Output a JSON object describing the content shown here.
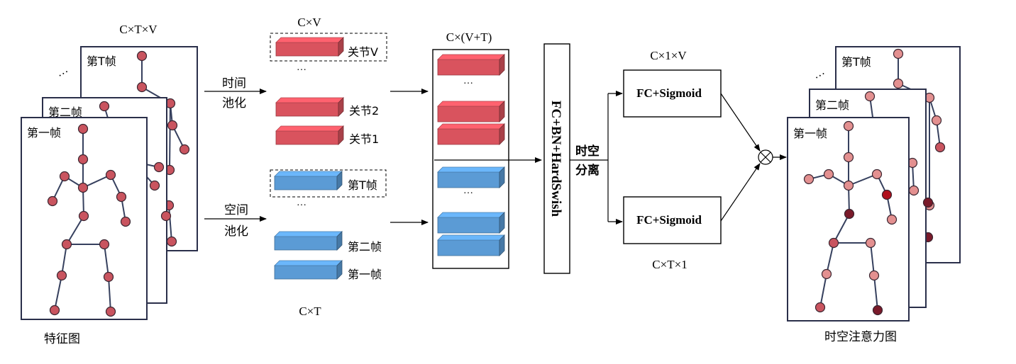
{
  "input": {
    "dims": "C×T×V",
    "frame_first": "第一帧",
    "frame_second": "第二帧",
    "frame_last": "第T帧",
    "ellipsis": "…",
    "caption": "特征图"
  },
  "pooling": {
    "temporal_line1": "时间",
    "temporal_line2": "池化",
    "spatial_line1": "空间",
    "spatial_line2": "池化"
  },
  "joint_features": {
    "dims": "C×V",
    "label_v": "关节V",
    "label_2": "关节2",
    "label_1": "关节1",
    "ellipsis": "…"
  },
  "frame_features": {
    "dims": "C×T",
    "label_t": "第T帧",
    "label_2": "第二帧",
    "label_1": "第一帧",
    "ellipsis": "…"
  },
  "concat": {
    "dims": "C×(V+T)",
    "ellipsis": "…"
  },
  "fc_block": {
    "label": "FC+BN+HardSwish"
  },
  "split": {
    "line1": "时空",
    "line2": "分离"
  },
  "branch_top": {
    "dims": "C×1×V",
    "label": "FC+Sigmoid"
  },
  "branch_bottom": {
    "dims": "C×T×1",
    "label": "FC+Sigmoid"
  },
  "multiply": {
    "symbol": "⊗"
  },
  "output": {
    "frame_first": "第一帧",
    "frame_second": "第二帧",
    "frame_last": "第T帧",
    "ellipsis": "…",
    "caption": "时空注意力图"
  },
  "colors": {
    "joint_red": "#c9545f",
    "joint_pink": "#e39090",
    "joint_dark": "#7a1a2a",
    "joint_crimson": "#b0101c",
    "cube_red": "#d9535e",
    "cube_blue": "#5b9bd5"
  }
}
